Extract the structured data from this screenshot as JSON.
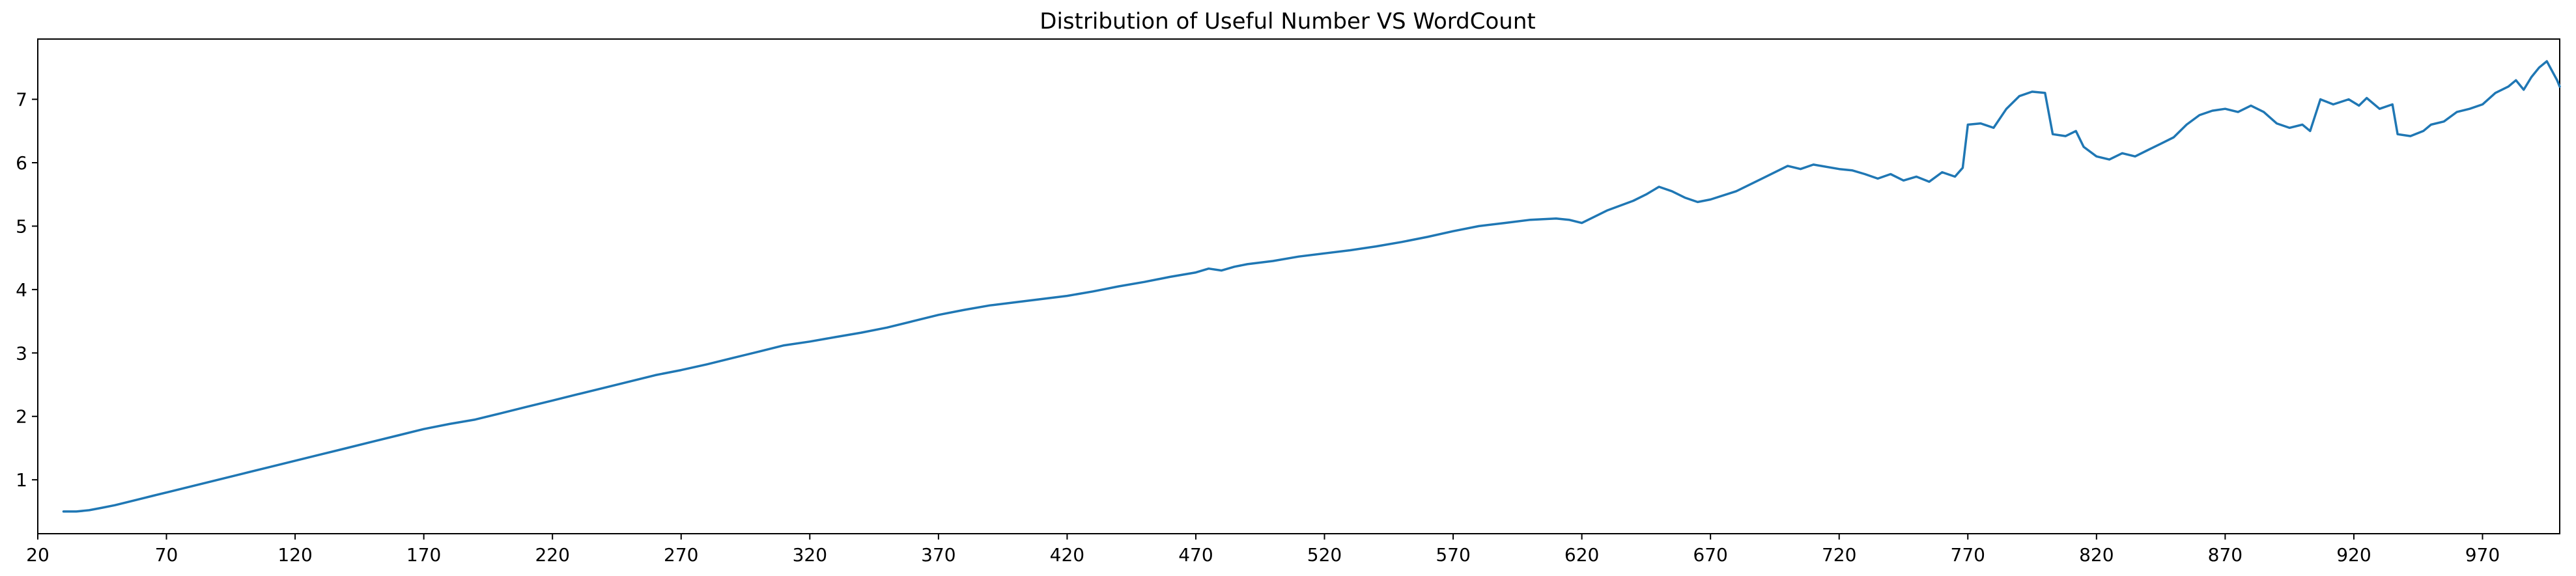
{
  "chart_data": {
    "type": "line",
    "title": "Distribution of Useful Number VS WordCount",
    "xlabel": "",
    "ylabel": "",
    "xlim": [
      20,
      1000
    ],
    "ylim": [
      0.15,
      7.95
    ],
    "grid": false,
    "legend": "none",
    "x_ticks": [
      20,
      70,
      120,
      170,
      220,
      270,
      320,
      370,
      420,
      470,
      520,
      570,
      620,
      670,
      720,
      770,
      820,
      870,
      920,
      970
    ],
    "y_ticks": [
      1,
      2,
      3,
      4,
      5,
      6,
      7
    ],
    "series": [
      {
        "color": "#1f77b4",
        "points": [
          [
            30,
            0.5
          ],
          [
            35,
            0.5
          ],
          [
            40,
            0.52
          ],
          [
            45,
            0.56
          ],
          [
            50,
            0.6
          ],
          [
            55,
            0.65
          ],
          [
            60,
            0.7
          ],
          [
            65,
            0.75
          ],
          [
            70,
            0.8
          ],
          [
            80,
            0.9
          ],
          [
            90,
            1.0
          ],
          [
            100,
            1.1
          ],
          [
            110,
            1.2
          ],
          [
            120,
            1.3
          ],
          [
            130,
            1.4
          ],
          [
            140,
            1.5
          ],
          [
            150,
            1.6
          ],
          [
            160,
            1.7
          ],
          [
            170,
            1.8
          ],
          [
            180,
            1.88
          ],
          [
            190,
            1.95
          ],
          [
            200,
            2.05
          ],
          [
            210,
            2.15
          ],
          [
            220,
            2.25
          ],
          [
            230,
            2.35
          ],
          [
            240,
            2.45
          ],
          [
            250,
            2.55
          ],
          [
            260,
            2.65
          ],
          [
            270,
            2.73
          ],
          [
            280,
            2.82
          ],
          [
            290,
            2.92
          ],
          [
            300,
            3.02
          ],
          [
            310,
            3.12
          ],
          [
            320,
            3.18
          ],
          [
            330,
            3.25
          ],
          [
            340,
            3.32
          ],
          [
            350,
            3.4
          ],
          [
            360,
            3.5
          ],
          [
            370,
            3.6
          ],
          [
            380,
            3.68
          ],
          [
            390,
            3.75
          ],
          [
            400,
            3.8
          ],
          [
            410,
            3.85
          ],
          [
            420,
            3.9
          ],
          [
            430,
            3.97
          ],
          [
            440,
            4.05
          ],
          [
            450,
            4.12
          ],
          [
            460,
            4.2
          ],
          [
            470,
            4.27
          ],
          [
            475,
            4.33
          ],
          [
            480,
            4.3
          ],
          [
            485,
            4.36
          ],
          [
            490,
            4.4
          ],
          [
            500,
            4.45
          ],
          [
            510,
            4.52
          ],
          [
            520,
            4.57
          ],
          [
            530,
            4.62
          ],
          [
            540,
            4.68
          ],
          [
            550,
            4.75
          ],
          [
            560,
            4.83
          ],
          [
            570,
            4.92
          ],
          [
            580,
            5.0
          ],
          [
            590,
            5.05
          ],
          [
            600,
            5.1
          ],
          [
            610,
            5.12
          ],
          [
            615,
            5.1
          ],
          [
            620,
            5.05
          ],
          [
            625,
            5.15
          ],
          [
            630,
            5.25
          ],
          [
            640,
            5.4
          ],
          [
            645,
            5.5
          ],
          [
            650,
            5.62
          ],
          [
            655,
            5.55
          ],
          [
            660,
            5.45
          ],
          [
            665,
            5.38
          ],
          [
            670,
            5.42
          ],
          [
            680,
            5.55
          ],
          [
            690,
            5.75
          ],
          [
            700,
            5.95
          ],
          [
            705,
            5.9
          ],
          [
            710,
            5.97
          ],
          [
            720,
            5.9
          ],
          [
            725,
            5.88
          ],
          [
            730,
            5.82
          ],
          [
            735,
            5.75
          ],
          [
            740,
            5.82
          ],
          [
            745,
            5.72
          ],
          [
            750,
            5.78
          ],
          [
            755,
            5.7
          ],
          [
            760,
            5.85
          ],
          [
            765,
            5.78
          ],
          [
            768,
            5.92
          ],
          [
            770,
            6.6
          ],
          [
            775,
            6.62
          ],
          [
            780,
            6.55
          ],
          [
            785,
            6.85
          ],
          [
            790,
            7.05
          ],
          [
            795,
            7.12
          ],
          [
            800,
            7.1
          ],
          [
            803,
            6.45
          ],
          [
            808,
            6.42
          ],
          [
            812,
            6.5
          ],
          [
            815,
            6.25
          ],
          [
            820,
            6.1
          ],
          [
            825,
            6.05
          ],
          [
            830,
            6.15
          ],
          [
            835,
            6.1
          ],
          [
            840,
            6.2
          ],
          [
            845,
            6.3
          ],
          [
            850,
            6.4
          ],
          [
            855,
            6.6
          ],
          [
            860,
            6.75
          ],
          [
            865,
            6.82
          ],
          [
            870,
            6.85
          ],
          [
            875,
            6.8
          ],
          [
            880,
            6.9
          ],
          [
            885,
            6.8
          ],
          [
            890,
            6.62
          ],
          [
            895,
            6.55
          ],
          [
            900,
            6.6
          ],
          [
            903,
            6.5
          ],
          [
            907,
            7.0
          ],
          [
            912,
            6.92
          ],
          [
            918,
            7.0
          ],
          [
            922,
            6.9
          ],
          [
            925,
            7.02
          ],
          [
            930,
            6.85
          ],
          [
            935,
            6.92
          ],
          [
            937,
            6.45
          ],
          [
            942,
            6.42
          ],
          [
            947,
            6.5
          ],
          [
            950,
            6.6
          ],
          [
            955,
            6.65
          ],
          [
            960,
            6.8
          ],
          [
            965,
            6.85
          ],
          [
            970,
            6.92
          ],
          [
            975,
            7.1
          ],
          [
            980,
            7.2
          ],
          [
            983,
            7.3
          ],
          [
            986,
            7.15
          ],
          [
            989,
            7.35
          ],
          [
            992,
            7.5
          ],
          [
            995,
            7.6
          ],
          [
            997,
            7.45
          ],
          [
            999,
            7.3
          ],
          [
            1000,
            7.2
          ]
        ]
      }
    ]
  }
}
